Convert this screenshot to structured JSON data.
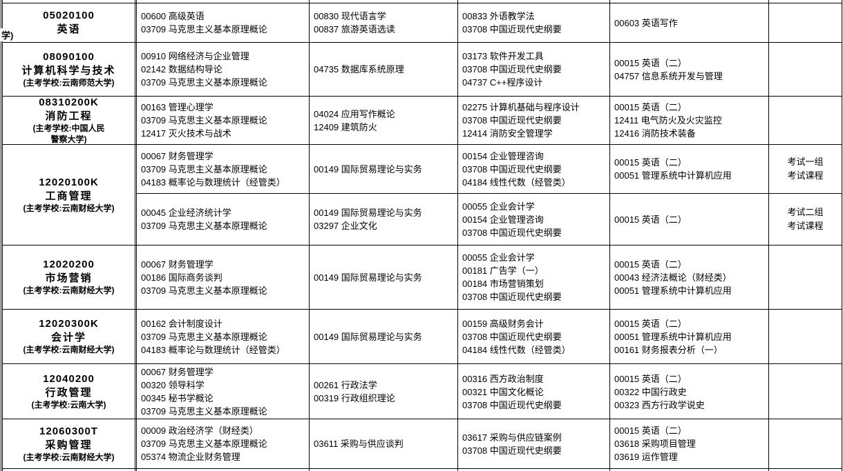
{
  "table": {
    "rows": [
      {
        "major": {
          "code": "05020100",
          "name": "英语",
          "school": [],
          "overflow": "学)"
        },
        "groups": [
          {
            "sessions": [
              [
                "00600 高级英语",
                "03709 马克思主义基本原理概论"
              ],
              [
                "00830 现代语言学",
                "00837 旅游英语选读"
              ],
              [
                "00833 外语教学法",
                "03708 中国近现代史纲要"
              ],
              [
                "00603 英语写作"
              ]
            ],
            "note": []
          }
        ]
      },
      {
        "major": {
          "code": "08090100",
          "name": "计算机科学与技术",
          "school": [
            "(主考学校:云南师范大学)"
          ],
          "overflow": ""
        },
        "groups": [
          {
            "sessions": [
              [
                "00910 网络经济与企业管理",
                "02142 数据结构导论",
                "03709 马克思主义基本原理概论"
              ],
              [
                "04735 数据库系统原理"
              ],
              [
                "03173 软件开发工具",
                "03708 中国近现代史纲要",
                "04737 C++程序设计"
              ],
              [
                "00015 英语（二）",
                "04757 信息系统开发与管理"
              ]
            ],
            "note": []
          }
        ]
      },
      {
        "major": {
          "code": "08310200K",
          "name": "消防工程",
          "school": [
            "(主考学校:中国人民",
            "警察大学)"
          ],
          "overflow": ""
        },
        "groups": [
          {
            "sessions": [
              [
                "00163 管理心理学",
                "03709 马克思主义基本原理概论",
                "12417 灭火技术与战术"
              ],
              [
                "04024 应用写作概论",
                "12409 建筑防火"
              ],
              [
                "02275 计算机基础与程序设计",
                "03708 中国近现代史纲要",
                "12414 消防安全管理学"
              ],
              [
                "00015 英语（二）",
                "12411 电气防火及火灾监控",
                "12416 消防技术装备"
              ]
            ],
            "note": []
          }
        ]
      },
      {
        "major": {
          "code": "12020100K",
          "name": "工商管理",
          "school": [
            "(主考学校:云南财经大学)"
          ],
          "overflow": ""
        },
        "groups": [
          {
            "sessions": [
              [
                "00067 财务管理学",
                "03709 马克思主义基本原理概论",
                "04183 概率论与数理统计（经管类）"
              ],
              [
                "00149 国际贸易理论与实务"
              ],
              [
                "00154 企业管理咨询",
                "03708 中国近现代史纲要",
                "04184 线性代数（经管类）"
              ],
              [
                "00015 英语（二）",
                "00051 管理系统中计算机应用"
              ]
            ],
            "note": [
              "考试一组",
              "考试课程"
            ]
          },
          {
            "sessions": [
              [
                "00045 企业经济统计学",
                "03709 马克思主义基本原理概论"
              ],
              [
                "00149 国际贸易理论与实务",
                "03297 企业文化"
              ],
              [
                "00055 企业会计学",
                "00154 企业管理咨询",
                "03708 中国近现代史纲要"
              ],
              [
                "00015 英语（二）"
              ]
            ],
            "note": [
              "考试二组",
              "考试课程"
            ]
          }
        ]
      },
      {
        "major": {
          "code": "12020200",
          "name": "市场营销",
          "school": [
            "(主考学校:云南财经大学)"
          ],
          "overflow": ""
        },
        "groups": [
          {
            "sessions": [
              [
                "00067 财务管理学",
                "00186 国际商务谈判",
                "03709 马克思主义基本原理概论"
              ],
              [
                "00149 国际贸易理论与实务"
              ],
              [
                "00055 企业会计学",
                "00181 广告学（一）",
                "00184 市场营销策划",
                "03708 中国近现代史纲要"
              ],
              [
                "00015 英语（二）",
                "00043 经济法概论（财经类）",
                "00051 管理系统中计算机应用"
              ]
            ],
            "note": []
          }
        ]
      },
      {
        "major": {
          "code": "12020300K",
          "name": "会计学",
          "school": [
            "(主考学校:云南财经大学)"
          ],
          "overflow": ""
        },
        "groups": [
          {
            "sessions": [
              [
                "00162 会计制度设计",
                "03709 马克思主义基本原理概论",
                "04183 概率论与数理统计（经管类）"
              ],
              [
                "00149 国际贸易理论与实务"
              ],
              [
                "00159 高级财务会计",
                "03708 中国近现代史纲要",
                "04184 线性代数（经管类）"
              ],
              [
                "00015 英语（二）",
                "00051 管理系统中计算机应用",
                "00161 财务报表分析（一）"
              ]
            ],
            "note": []
          }
        ]
      },
      {
        "major": {
          "code": "12040200",
          "name": "行政管理",
          "school": [
            "(主考学校:云南大学)"
          ],
          "overflow": ""
        },
        "groups": [
          {
            "sessions": [
              [
                "00067 财务管理学",
                "00320 领导科学",
                "00345 秘书学概论",
                "03709 马克思主义基本原理概论"
              ],
              [
                "00261 行政法学",
                "00319 行政组织理论"
              ],
              [
                "00316 西方政治制度",
                "00321 中国文化概论",
                "03708 中国近现代史纲要"
              ],
              [
                "00015 英语（二）",
                "00322 中国行政史",
                "00323 西方行政学说史"
              ]
            ],
            "note": []
          }
        ]
      },
      {
        "major": {
          "code": "12060300T",
          "name": "采购管理",
          "school": [
            "(主考学校:云南财经大学)"
          ],
          "overflow": ""
        },
        "groups": [
          {
            "sessions": [
              [
                "00009 政治经济学（财经类）",
                "03709 马克思主义基本原理概论",
                "05374 物流企业财务管理"
              ],
              [
                "03611 采购与供应谈判"
              ],
              [
                "03617 采购与供应链案例",
                "03708 中国近现代史纲要"
              ],
              [
                "00015 英语（二）",
                "03618 采购项目管理",
                "03619 运作管理"
              ]
            ],
            "note": []
          }
        ]
      }
    ]
  }
}
